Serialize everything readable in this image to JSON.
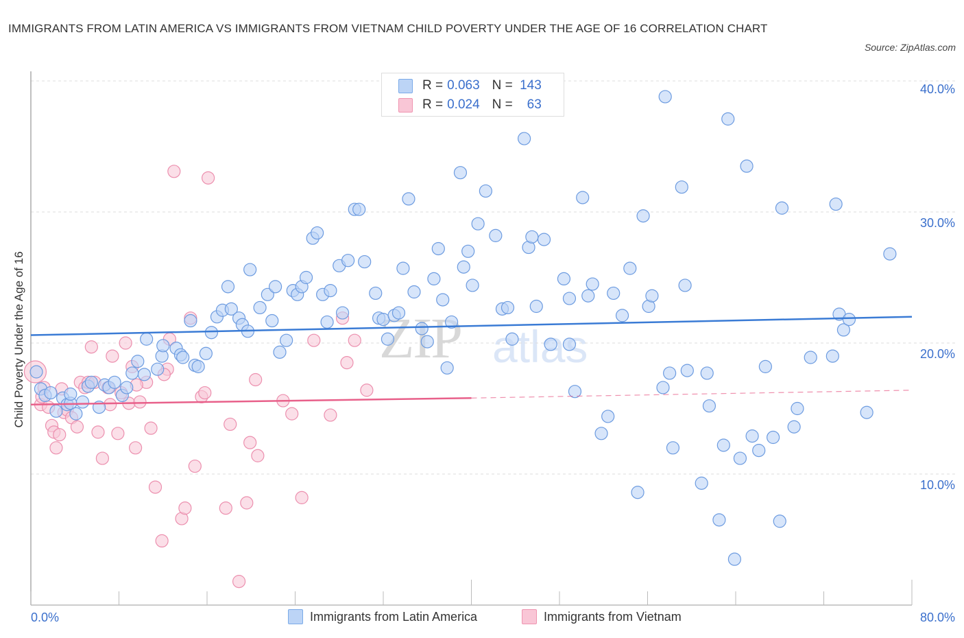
{
  "title": "IMMIGRANTS FROM LATIN AMERICA VS IMMIGRANTS FROM VIETNAM CHILD POVERTY UNDER THE AGE OF 16 CORRELATION CHART",
  "source": "Source: ZipAtlas.com",
  "watermark": {
    "zip": "ZIP",
    "atlas": "atlas"
  },
  "legend": {
    "rows": [
      {
        "r_label": "R =",
        "r_value": "0.063",
        "n_label": "N =",
        "n_value": "143",
        "color": "#7aaae8",
        "fill": "#bcd4f6"
      },
      {
        "r_label": "R =",
        "r_value": "0.024",
        "n_label": "N =",
        "n_value": "63",
        "color": "#ef94b0",
        "fill": "#f9c6d6"
      }
    ]
  },
  "bottom_legend": [
    {
      "label": "Immigrants from Latin America"
    },
    {
      "label": "Immigrants from Vietnam"
    }
  ],
  "x_axis": {
    "min_label": "0.0%",
    "max_label": "80.0%"
  },
  "y_axis": {
    "label": "Child Poverty Under the Age of 16",
    "ticks": [
      "40.0%",
      "30.0%",
      "20.0%",
      "10.0%"
    ]
  },
  "colors": {
    "blue": "#3a7bd5",
    "blue_fill": "#bcd4f6",
    "blue_stroke": "#6c9be0",
    "pink": "#e8608a",
    "pink_fill": "#f9c9d8",
    "pink_stroke": "#ec8fae",
    "axis_text": "#3a6fcc"
  },
  "chart_data": {
    "type": "scatter",
    "title": "IMMIGRANTS FROM LATIN AMERICA VS IMMIGRANTS FROM VIETNAM CHILD POVERTY UNDER THE AGE OF 16 CORRELATION CHART",
    "xlabel": "",
    "ylabel": "Child Poverty Under the Age of 16",
    "xlim": [
      0,
      80
    ],
    "ylim": [
      0,
      40
    ],
    "x_ticks": [
      "0.0%",
      "80.0%"
    ],
    "y_ticks": [
      10,
      20,
      30,
      40
    ],
    "grid": true,
    "legend_position": "top-center",
    "series": [
      {
        "name": "Immigrants from Latin America",
        "r": 0.063,
        "n": 143,
        "trend": {
          "x": [
            0,
            80
          ],
          "y": [
            20.6,
            22.0
          ]
        },
        "points": [
          [
            0.9,
            16.5
          ],
          [
            1.3,
            16.0
          ],
          [
            1.8,
            16.2
          ],
          [
            2.3,
            14.8
          ],
          [
            2.9,
            15.8
          ],
          [
            3.3,
            15.3
          ],
          [
            3.6,
            15.4
          ],
          [
            4.1,
            14.6
          ],
          [
            3.6,
            16.1
          ],
          [
            5.2,
            16.7
          ],
          [
            5.5,
            17.0
          ],
          [
            6.2,
            15.1
          ],
          [
            6.7,
            16.8
          ],
          [
            7.1,
            16.6
          ],
          [
            7.6,
            17.0
          ],
          [
            8.3,
            16.0
          ],
          [
            8.7,
            16.6
          ],
          [
            9.2,
            17.7
          ],
          [
            9.7,
            18.6
          ],
          [
            10.3,
            17.6
          ],
          [
            10.5,
            20.3
          ],
          [
            11.5,
            18.0
          ],
          [
            11.9,
            19.0
          ],
          [
            12.0,
            19.8
          ],
          [
            13.2,
            19.6
          ],
          [
            13.6,
            19.1
          ],
          [
            13.8,
            18.9
          ],
          [
            14.5,
            21.7
          ],
          [
            14.9,
            18.3
          ],
          [
            15.2,
            18.2
          ],
          [
            15.9,
            19.2
          ],
          [
            16.4,
            20.8
          ],
          [
            16.9,
            22.0
          ],
          [
            17.4,
            22.5
          ],
          [
            17.9,
            24.3
          ],
          [
            18.2,
            22.6
          ],
          [
            18.9,
            21.9
          ],
          [
            19.2,
            21.4
          ],
          [
            19.7,
            20.9
          ],
          [
            19.9,
            25.6
          ],
          [
            20.8,
            22.7
          ],
          [
            21.5,
            23.7
          ],
          [
            21.9,
            21.7
          ],
          [
            22.2,
            24.3
          ],
          [
            22.6,
            19.3
          ],
          [
            23.2,
            20.2
          ],
          [
            23.8,
            24.0
          ],
          [
            24.2,
            23.7
          ],
          [
            24.6,
            24.3
          ],
          [
            25.0,
            25.0
          ],
          [
            25.6,
            28.0
          ],
          [
            26.0,
            28.4
          ],
          [
            26.5,
            23.7
          ],
          [
            26.9,
            21.6
          ],
          [
            27.2,
            24.0
          ],
          [
            28.0,
            25.9
          ],
          [
            28.3,
            22.3
          ],
          [
            28.8,
            26.3
          ],
          [
            29.4,
            30.2
          ],
          [
            29.8,
            30.2
          ],
          [
            30.3,
            26.2
          ],
          [
            31.3,
            23.8
          ],
          [
            31.6,
            21.9
          ],
          [
            32.0,
            21.8
          ],
          [
            32.4,
            20.3
          ],
          [
            33.0,
            22.1
          ],
          [
            33.4,
            22.3
          ],
          [
            33.8,
            25.7
          ],
          [
            34.3,
            31.0
          ],
          [
            34.8,
            23.9
          ],
          [
            35.5,
            21.1
          ],
          [
            36.0,
            20.1
          ],
          [
            36.6,
            24.9
          ],
          [
            37.0,
            27.2
          ],
          [
            37.4,
            23.3
          ],
          [
            37.8,
            18.1
          ],
          [
            38.2,
            21.6
          ],
          [
            39.0,
            33.0
          ],
          [
            39.3,
            25.8
          ],
          [
            39.7,
            27.0
          ],
          [
            40.1,
            24.4
          ],
          [
            40.6,
            29.1
          ],
          [
            41.3,
            31.6
          ],
          [
            42.2,
            28.2
          ],
          [
            42.8,
            22.6
          ],
          [
            43.3,
            22.7
          ],
          [
            43.7,
            20.3
          ],
          [
            44.8,
            35.6
          ],
          [
            45.2,
            27.3
          ],
          [
            45.5,
            28.1
          ],
          [
            45.9,
            22.8
          ],
          [
            46.6,
            27.9
          ],
          [
            47.2,
            19.9
          ],
          [
            48.4,
            24.9
          ],
          [
            48.9,
            23.4
          ],
          [
            48.9,
            19.9
          ],
          [
            49.4,
            16.3
          ],
          [
            50.1,
            31.1
          ],
          [
            50.6,
            23.6
          ],
          [
            51.0,
            24.5
          ],
          [
            51.8,
            13.1
          ],
          [
            52.4,
            14.4
          ],
          [
            52.9,
            23.8
          ],
          [
            53.7,
            22.1
          ],
          [
            54.4,
            25.7
          ],
          [
            55.1,
            8.6
          ],
          [
            55.6,
            29.7
          ],
          [
            56.1,
            22.8
          ],
          [
            56.4,
            23.6
          ],
          [
            57.4,
            16.6
          ],
          [
            57.6,
            38.8
          ],
          [
            58.0,
            17.7
          ],
          [
            58.3,
            12.0
          ],
          [
            59.1,
            31.9
          ],
          [
            59.4,
            24.4
          ],
          [
            59.6,
            17.9
          ],
          [
            60.9,
            9.3
          ],
          [
            61.4,
            17.7
          ],
          [
            61.6,
            15.2
          ],
          [
            62.5,
            6.5
          ],
          [
            62.9,
            12.2
          ],
          [
            63.3,
            37.1
          ],
          [
            63.9,
            3.5
          ],
          [
            64.4,
            11.2
          ],
          [
            65.0,
            33.5
          ],
          [
            65.5,
            12.9
          ],
          [
            66.1,
            11.8
          ],
          [
            66.7,
            18.2
          ],
          [
            67.4,
            12.8
          ],
          [
            68.0,
            6.4
          ],
          [
            68.2,
            30.3
          ],
          [
            69.3,
            13.6
          ],
          [
            69.6,
            15.0
          ],
          [
            70.8,
            18.9
          ],
          [
            72.8,
            19.0
          ],
          [
            73.1,
            30.6
          ],
          [
            73.4,
            22.2
          ],
          [
            73.8,
            21.0
          ],
          [
            74.3,
            21.8
          ],
          [
            75.9,
            14.7
          ],
          [
            78.0,
            26.8
          ],
          [
            0.5,
            17.8
          ],
          [
            4.7,
            15.5
          ]
        ]
      },
      {
        "name": "Immigrants from Vietnam",
        "r": 0.024,
        "n": 63,
        "trend": {
          "x": [
            0,
            40
          ],
          "y": [
            15.3,
            15.8
          ],
          "dashed_extension": {
            "x": [
              40,
              80
            ],
            "y": [
              15.8,
              16.4
            ]
          }
        },
        "points": [
          [
            0.4,
            17.8
          ],
          [
            0.9,
            15.3
          ],
          [
            1.2,
            16.6
          ],
          [
            1.6,
            15.1
          ],
          [
            1.9,
            13.7
          ],
          [
            2.1,
            13.2
          ],
          [
            2.3,
            12.0
          ],
          [
            2.6,
            13.0
          ],
          [
            3.0,
            14.7
          ],
          [
            3.3,
            14.9
          ],
          [
            3.7,
            14.3
          ],
          [
            4.2,
            13.6
          ],
          [
            4.5,
            17.0
          ],
          [
            4.9,
            16.6
          ],
          [
            5.2,
            17.0
          ],
          [
            5.5,
            19.7
          ],
          [
            5.8,
            17.0
          ],
          [
            6.1,
            13.2
          ],
          [
            6.5,
            11.2
          ],
          [
            7.0,
            16.6
          ],
          [
            7.4,
            19.0
          ],
          [
            7.9,
            13.1
          ],
          [
            8.2,
            16.2
          ],
          [
            8.6,
            20.0
          ],
          [
            8.9,
            15.4
          ],
          [
            9.2,
            18.2
          ],
          [
            9.5,
            12.0
          ],
          [
            9.9,
            15.5
          ],
          [
            10.5,
            17.0
          ],
          [
            10.9,
            13.5
          ],
          [
            11.3,
            9.0
          ],
          [
            11.9,
            4.9
          ],
          [
            12.4,
            18.0
          ],
          [
            12.6,
            20.3
          ],
          [
            13.0,
            33.1
          ],
          [
            13.7,
            6.6
          ],
          [
            14.0,
            7.4
          ],
          [
            14.5,
            21.9
          ],
          [
            14.9,
            10.6
          ],
          [
            15.5,
            15.9
          ],
          [
            15.8,
            16.2
          ],
          [
            16.1,
            32.6
          ],
          [
            17.7,
            7.4
          ],
          [
            18.1,
            13.8
          ],
          [
            18.9,
            1.8
          ],
          [
            19.6,
            7.8
          ],
          [
            19.9,
            12.4
          ],
          [
            20.4,
            17.2
          ],
          [
            20.6,
            11.4
          ],
          [
            22.9,
            15.6
          ],
          [
            23.7,
            14.6
          ],
          [
            24.6,
            8.2
          ],
          [
            25.7,
            20.2
          ],
          [
            27.2,
            14.5
          ],
          [
            28.3,
            21.9
          ],
          [
            28.7,
            18.5
          ],
          [
            29.4,
            20.2
          ],
          [
            30.5,
            16.4
          ],
          [
            1.0,
            15.9
          ],
          [
            2.8,
            16.5
          ],
          [
            7.2,
            15.3
          ],
          [
            12.1,
            17.6
          ],
          [
            9.6,
            16.8
          ]
        ]
      }
    ]
  }
}
